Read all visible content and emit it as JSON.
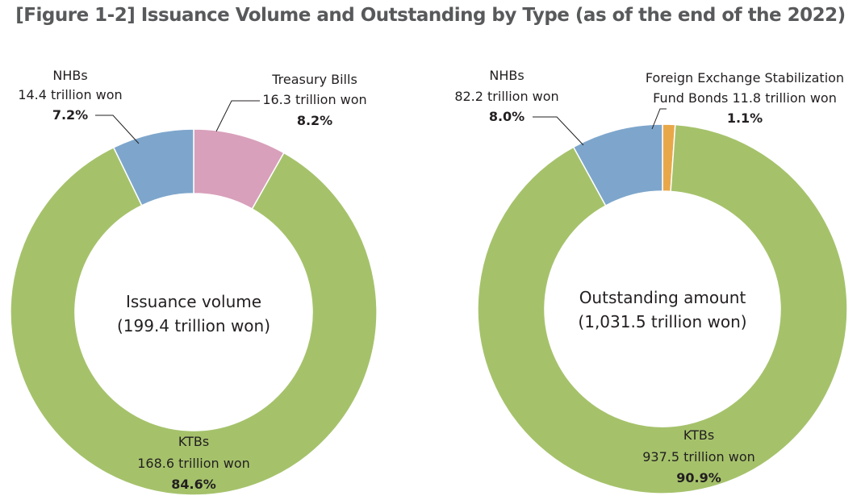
{
  "title": "[Figure 1-2] Issuance Volume and Outstanding by Type (as of the end of the 2022)",
  "chart_data": [
    {
      "type": "pie",
      "center_label": "Issuance volume",
      "center_value": "(199.4 trillion won)",
      "slices": [
        {
          "name": "Treasury Bills",
          "amount_label": "16.3 trillion won",
          "percent_label": "8.2%",
          "value": 8.2,
          "color": "#d8a0bb"
        },
        {
          "name": "KTBs",
          "amount_label": "168.6 trillion won",
          "percent_label": "84.6%",
          "value": 84.6,
          "color": "#a5c26b"
        },
        {
          "name": "NHBs",
          "amount_label": "14.4 trillion won",
          "percent_label": "7.2%",
          "value": 7.2,
          "color": "#7ea6cc"
        }
      ]
    },
    {
      "type": "pie",
      "center_label": "Outstanding amount",
      "center_value": "(1,031.5 trillion won)",
      "slices": [
        {
          "name": "Foreign Exchange Stabilization",
          "name_line2": "Fund Bonds 11.8 trillion won",
          "amount_label": "",
          "percent_label": "1.1%",
          "value": 1.1,
          "color": "#e8a84a"
        },
        {
          "name": "KTBs",
          "amount_label": "937.5 trillion won",
          "percent_label": "90.9%",
          "value": 90.9,
          "color": "#a5c26b"
        },
        {
          "name": "NHBs",
          "amount_label": "82.2 trillion won",
          "percent_label": "8.0%",
          "value": 8.0,
          "color": "#7ea6cc"
        }
      ]
    }
  ]
}
